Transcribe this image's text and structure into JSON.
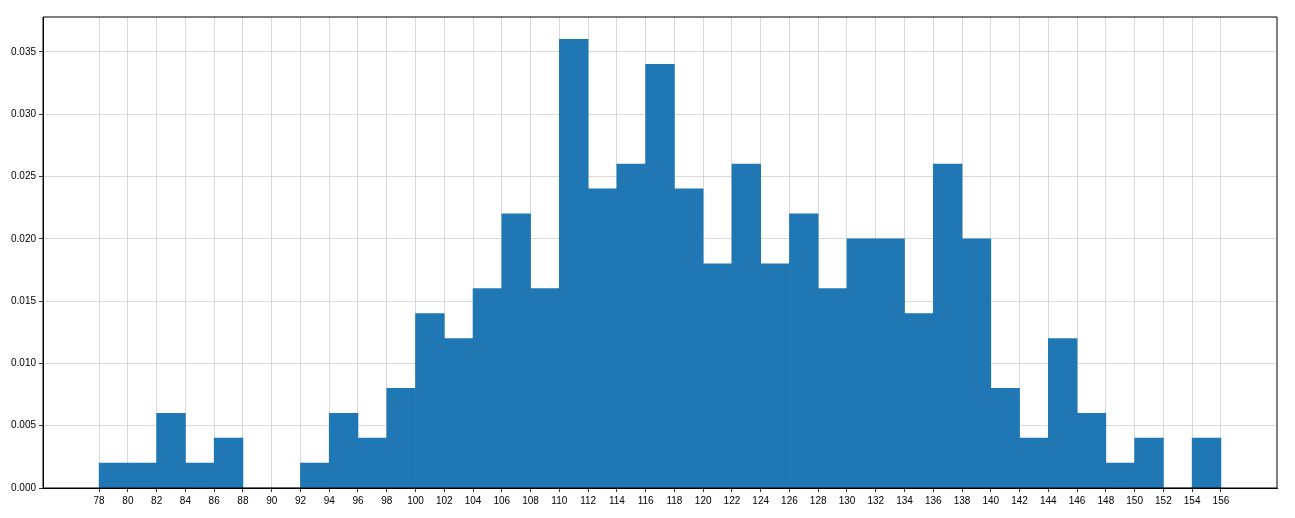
{
  "chart_data": {
    "type": "histogram",
    "bins": [
      78,
      80,
      82,
      84,
      86,
      88,
      90,
      92,
      94,
      96,
      98,
      100,
      102,
      104,
      106,
      108,
      110,
      112,
      114,
      116,
      118,
      120,
      122,
      124,
      126,
      128,
      130,
      132,
      134,
      136,
      138,
      140,
      142,
      144,
      146,
      148,
      150,
      152,
      154,
      156
    ],
    "values": [
      0.002,
      0.002,
      0.006,
      0.002,
      0.004,
      0,
      0,
      0.002,
      0.006,
      0.004,
      0.008,
      0.014,
      0.012,
      0.016,
      0.022,
      0.016,
      0.036,
      0.024,
      0.026,
      0.034,
      0.024,
      0.018,
      0.026,
      0.018,
      0.022,
      0.016,
      0.02,
      0.02,
      0.014,
      0.026,
      0.02,
      0.008,
      0.004,
      0.012,
      0.006,
      0.002,
      0.004,
      0,
      0.004
    ],
    "color": "#1f77b4",
    "xlim": [
      74.1,
      159.9
    ],
    "xticks": [
      78,
      80,
      82,
      84,
      86,
      88,
      90,
      92,
      94,
      96,
      98,
      100,
      102,
      104,
      106,
      108,
      110,
      112,
      114,
      116,
      118,
      120,
      122,
      124,
      126,
      128,
      130,
      132,
      134,
      136,
      138,
      140,
      142,
      144,
      146,
      148,
      150,
      152,
      154,
      156
    ],
    "ylim": [
      0,
      0.0378
    ],
    "yticks": [
      {
        "value": 0,
        "label": "0.000"
      },
      {
        "value": 0.005,
        "label": "0.005"
      },
      {
        "value": 0.01,
        "label": "0.010"
      },
      {
        "value": 0.015,
        "label": "0.015"
      },
      {
        "value": 0.02,
        "label": "0.020"
      },
      {
        "value": 0.025,
        "label": "0.025"
      },
      {
        "value": 0.03,
        "label": "0.030"
      },
      {
        "value": 0.035,
        "label": "0.035"
      }
    ],
    "grid": true
  }
}
